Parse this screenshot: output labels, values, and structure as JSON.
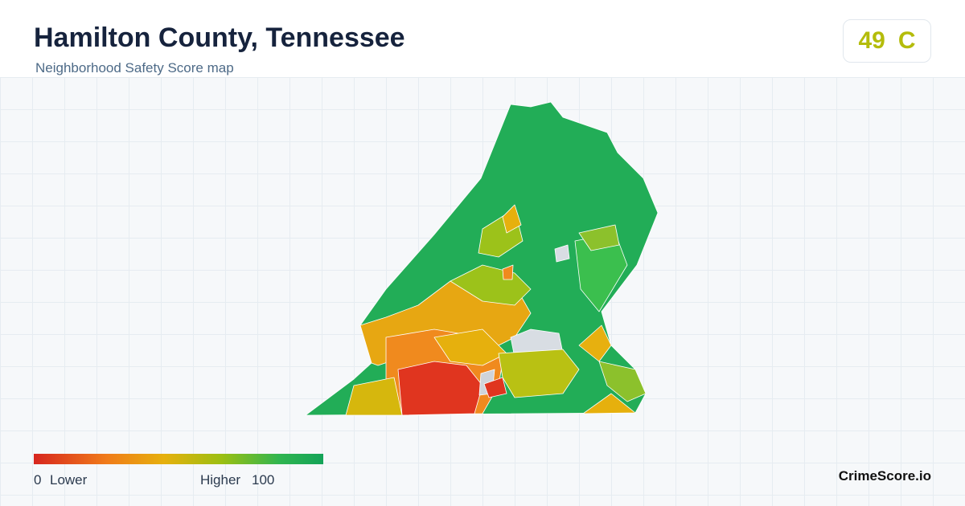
{
  "header": {
    "title": "Hamilton County, Tennessee",
    "subtitle": "Neighborhood Safety Score map"
  },
  "score": {
    "value": 49,
    "grade": "C"
  },
  "legend": {
    "min": 0,
    "min_label": "Lower",
    "max_label": "Higher",
    "max": 100
  },
  "brand": "CrimeScore.io"
}
